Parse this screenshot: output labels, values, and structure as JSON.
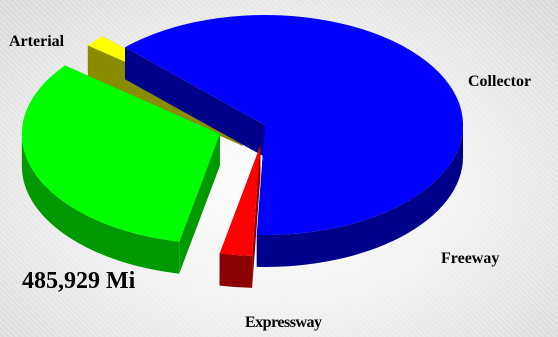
{
  "chart_data": {
    "type": "pie",
    "labels": [
      "Arterial",
      "Collector",
      "Freeway",
      "Expressway"
    ],
    "values": [
      60.0,
      2.5,
      30.8,
      1.7
    ],
    "colors": [
      "#0000ff",
      "#ff0000",
      "#00ff00",
      "#ffff00"
    ],
    "side_colors": [
      "#00008b",
      "#8b0000",
      "#009900",
      "#8b8b00"
    ],
    "total_label": "485,929 Mi",
    "style": "3d-exploded"
  }
}
